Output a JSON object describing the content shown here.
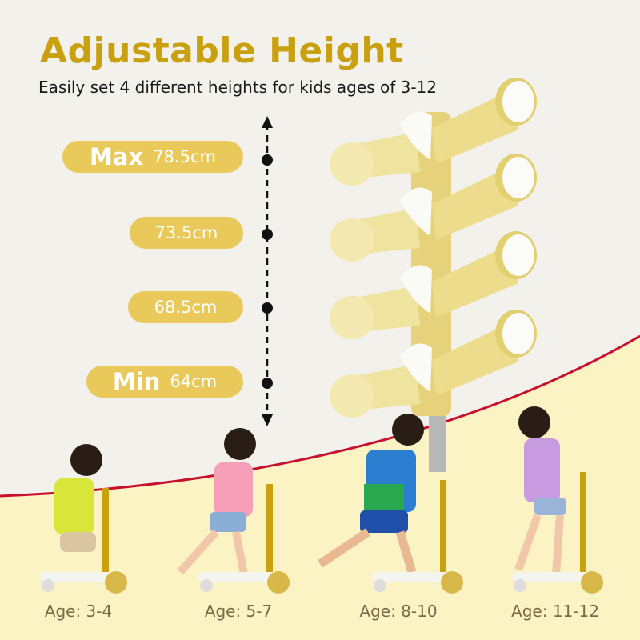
{
  "header": {
    "title": "Adjustable Height",
    "subtitle": "Easily set 4 different heights for kids ages of 3-12"
  },
  "heights": [
    {
      "tag": "Max",
      "value": "78.5cm"
    },
    {
      "tag": "",
      "value": "73.5cm"
    },
    {
      "tag": "",
      "value": "68.5cm"
    },
    {
      "tag": "Min",
      "value": "64cm"
    }
  ],
  "ages": [
    {
      "label": "Age: 3-4"
    },
    {
      "label": "Age: 5-7"
    },
    {
      "label": "Age: 8-10"
    },
    {
      "label": "Age: 11-12"
    }
  ],
  "colors": {
    "title": "#c9a10f",
    "pill": "#e8c95a",
    "curve": "#c8102e",
    "ground": "#fbf3c4",
    "handlebar": "#efe3a0"
  }
}
